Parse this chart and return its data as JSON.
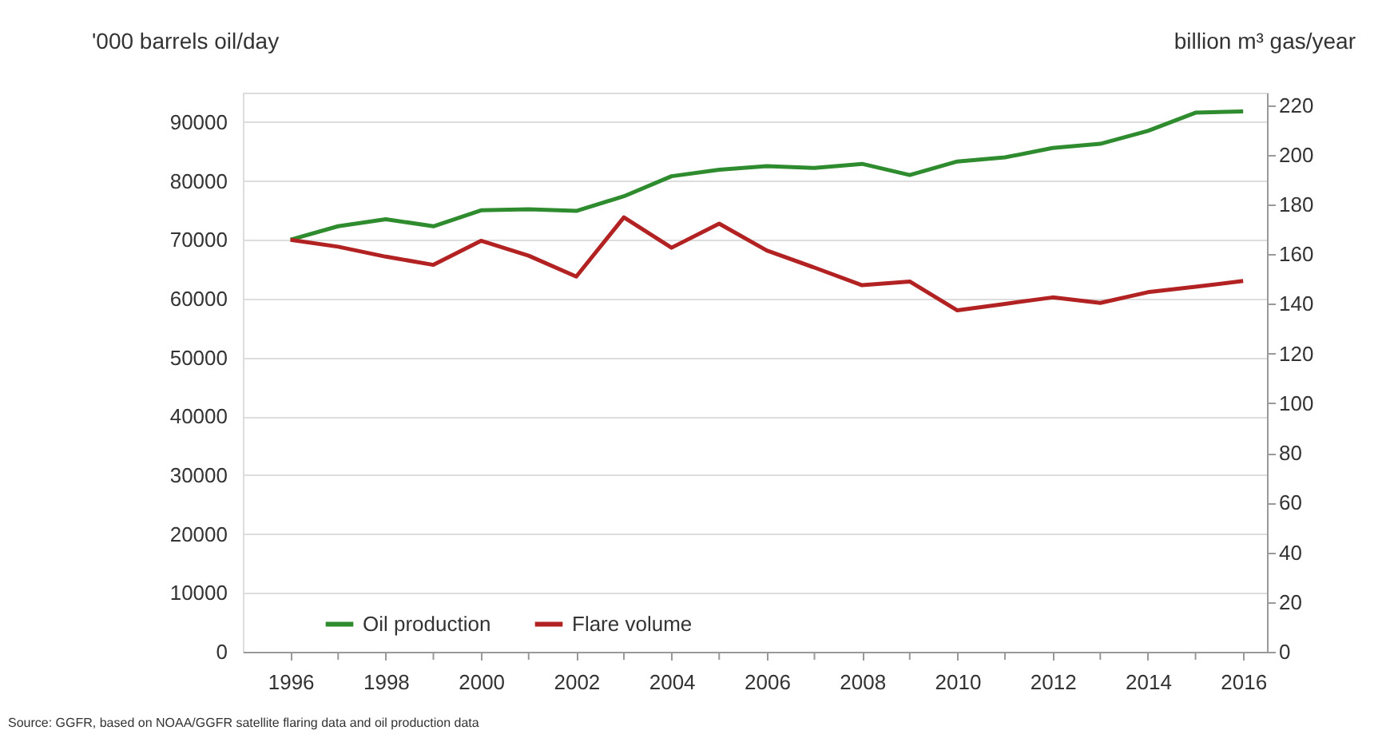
{
  "chart_data": {
    "type": "line",
    "ylabel": "'000 barrels oil/day",
    "y2label": "billion m³ gas/year",
    "annotations": [
      "Source: GGFR, based on NOAA/GGFR satellite flaring data and oil production data"
    ],
    "x": [
      1996,
      1997,
      1998,
      1999,
      2000,
      2001,
      2002,
      2003,
      2004,
      2005,
      2006,
      2007,
      2008,
      2009,
      2010,
      2011,
      2012,
      2013,
      2014,
      2015,
      2016
    ],
    "series": [
      {
        "name": "Oil production",
        "color": "#2e8b2e",
        "axis": "y",
        "values": [
          70000,
          72300,
          73500,
          72300,
          75000,
          75200,
          74900,
          77400,
          80800,
          81900,
          82500,
          82200,
          82900,
          81000,
          83300,
          84000,
          85600,
          86300,
          88500,
          91600,
          91800
        ]
      },
      {
        "name": "Flare volume",
        "color": "#b22222",
        "axis": "y2",
        "values": [
          165.8,
          163,
          159,
          155.7,
          165.4,
          159.4,
          151,
          174.8,
          162.6,
          172.3,
          161.5,
          154.6,
          147.5,
          149,
          137.4,
          140,
          142.6,
          140.4,
          144.7,
          146.9,
          149.2
        ]
      }
    ],
    "xlim": [
      1995,
      2016.5
    ],
    "xticks": [
      1996,
      {
        "value": 1997,
        "label": null
      },
      1998,
      {
        "value": 1999,
        "label": null
      },
      2000,
      {
        "value": 2001,
        "label": null
      },
      2002,
      {
        "value": 2003,
        "label": null
      },
      2004,
      {
        "value": 2005,
        "label": null
      },
      2006,
      {
        "value": 2007,
        "label": null
      },
      2008,
      {
        "value": 2009,
        "label": null
      },
      2010,
      {
        "value": 2011,
        "label": null
      },
      2012,
      {
        "value": 2013,
        "label": null
      },
      2014,
      {
        "value": 2015,
        "label": null
      },
      2016
    ],
    "ylim": [
      0,
      95000
    ],
    "yticks": [
      0,
      10000,
      20000,
      30000,
      40000,
      50000,
      60000,
      70000,
      80000,
      90000
    ],
    "y2lim": [
      0,
      225
    ],
    "y2ticks": [
      0,
      20,
      40,
      60,
      80,
      100,
      120,
      140,
      160,
      180,
      200,
      220
    ],
    "grid": "y",
    "legend": "bottom left"
  }
}
